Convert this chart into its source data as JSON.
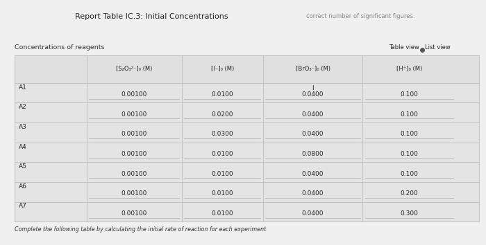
{
  "title": "Report Table IC.3: Initial Concentrations",
  "subtitle": "Concentrations of reagents",
  "top_right_text": "correct number of significant figures.",
  "col_headers": [
    "",
    "[S₂O₃²⁻]₀ (M)",
    "[I⁻]₀ (M)",
    "[BrO₃⁻]₀ (M)",
    "[H⁺]₀ (M)"
  ],
  "rows": [
    [
      "A1",
      "0.00100",
      "0.0100",
      "0.0400",
      "0.100"
    ],
    [
      "A2",
      "0.00100",
      "0.0200",
      "0.0400",
      "0.100"
    ],
    [
      "A3",
      "0.00100",
      "0.0300",
      "0.0400",
      "0.100"
    ],
    [
      "A4",
      "0.00100",
      "0.0100",
      "0.0800",
      "0.100"
    ],
    [
      "A5",
      "0.00100",
      "0.0100",
      "0.0400",
      "0.100"
    ],
    [
      "A6",
      "0.00100",
      "0.0100",
      "0.0400",
      "0.200"
    ],
    [
      "A7",
      "0.00100",
      "0.0100",
      "0.0400",
      "0.300"
    ]
  ],
  "footer_text": "Complete the following table by calculating the initial rate of reaction for each experiment",
  "bg_color": "#f0f0f0",
  "table_bg": "#e8e8e8",
  "cell_bg": "#ececec",
  "line_color": "#bbbbbb",
  "text_color": "#222222",
  "label_color": "#333333",
  "col_props": [
    0.155,
    0.205,
    0.175,
    0.215,
    0.2
  ],
  "title_fontsize": 8.0,
  "header_fontsize": 6.0,
  "data_fontsize": 6.5,
  "a1_bro3_has_I": true
}
